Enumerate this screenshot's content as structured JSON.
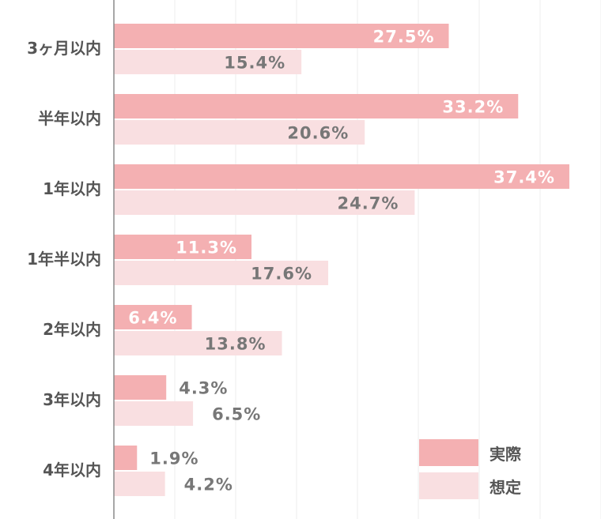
{
  "chart_data": {
    "type": "bar",
    "orientation": "horizontal",
    "categories": [
      "3ヶ月以内",
      "半年以内",
      "1年以内",
      "1年半以内",
      "2年以内",
      "3年以内",
      "4年以内"
    ],
    "series": [
      {
        "name": "実際",
        "values": [
          27.5,
          33.2,
          37.4,
          11.3,
          6.4,
          4.3,
          1.9
        ],
        "labels": [
          "27.5%",
          "33.2%",
          "37.4%",
          "11.3%",
          "6.4%",
          "4.3%",
          "1.9%"
        ],
        "color": "#f4b0b2"
      },
      {
        "name": "想定",
        "values": [
          15.4,
          20.6,
          24.7,
          17.6,
          13.8,
          6.5,
          4.2
        ],
        "labels": [
          "15.4%",
          "20.6%",
          "24.7%",
          "17.6%",
          "13.8%",
          "6.5%",
          "4.2%"
        ],
        "color": "#f9dfe1"
      }
    ],
    "xlim": [
      0,
      40
    ],
    "grid": true,
    "legend": "bottom-right",
    "colors": {
      "inside_label": "#ffffff",
      "outside_label": "#777777"
    }
  }
}
